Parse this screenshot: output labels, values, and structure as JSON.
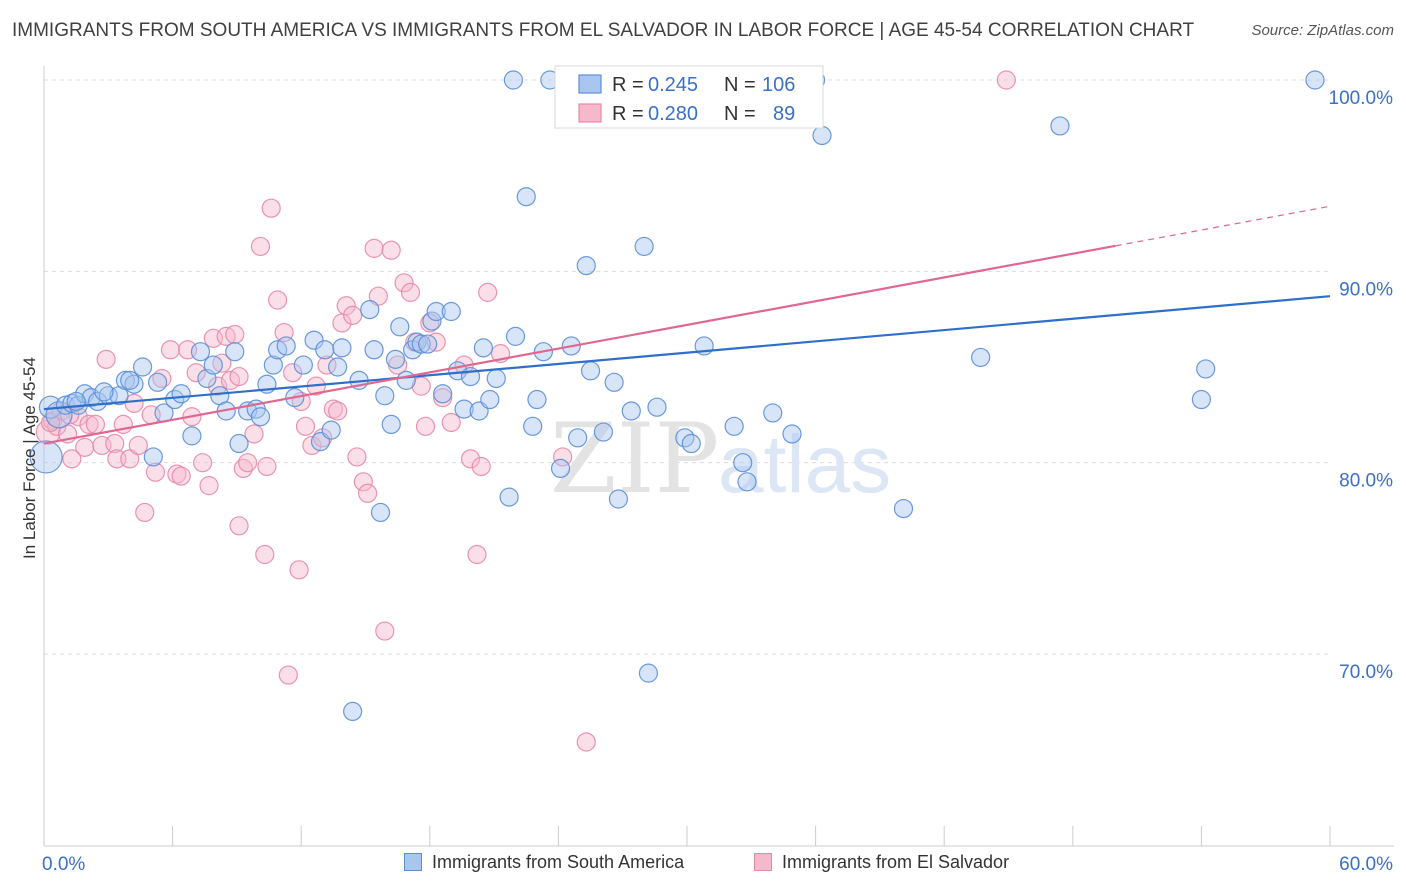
{
  "title": "IMMIGRANTS FROM SOUTH AMERICA VS IMMIGRANTS FROM EL SALVADOR IN LABOR FORCE | AGE 45-54 CORRELATION CHART",
  "source": "Source: ZipAtlas.com",
  "watermark": {
    "part1": "ZIP",
    "part2": "atlas"
  },
  "colors": {
    "blue_fill": "#a8c6f0",
    "blue_stroke": "#5b8ed8",
    "blue_line": "#2f6fcc",
    "pink_fill": "#f6b9cc",
    "pink_stroke": "#e888a8",
    "pink_line": "#e06890",
    "axis_text": "#3a70c8"
  },
  "chart_data": {
    "type": "scatter",
    "xlabel": "",
    "ylabel": "In Labor Force | Age 45-54",
    "xlim": [
      0,
      60
    ],
    "ylim": [
      60,
      101
    ],
    "x_tick_labels": [
      {
        "value": 0,
        "label": "0.0%"
      },
      {
        "value": 60,
        "label": "60.0%"
      }
    ],
    "y_tick_labels": [
      {
        "value": 70,
        "label": "70.0%"
      },
      {
        "value": 80,
        "label": "80.0%"
      },
      {
        "value": 90,
        "label": "90.0%"
      },
      {
        "value": 100,
        "label": "100.0%"
      }
    ],
    "grid": "horizontal-dashed",
    "legend_top": [
      {
        "r_label": "R =",
        "r_value": "0.245",
        "n_label": "N =",
        "n_value": "106"
      },
      {
        "r_label": "R =",
        "r_value": "0.280",
        "n_label": "N =",
        "n_value": "89"
      }
    ],
    "series": [
      {
        "name": "Immigrants from South America",
        "trend": {
          "x0": 0,
          "y0": 82.8,
          "x1": 60,
          "y1": 88.7
        },
        "points": [
          [
            0.3,
            82.9
          ],
          [
            0.7,
            82.5
          ],
          [
            1.0,
            83.0
          ],
          [
            1.3,
            83.1
          ],
          [
            1.6,
            83.0
          ],
          [
            1.9,
            83.6
          ],
          [
            2.2,
            83.4
          ],
          [
            2.5,
            83.2
          ],
          [
            3.0,
            83.5
          ],
          [
            3.5,
            83.5
          ],
          [
            3.8,
            84.3
          ],
          [
            4.2,
            84.1
          ],
          [
            4.6,
            85.0
          ],
          [
            5.1,
            80.3
          ],
          [
            5.3,
            84.2
          ],
          [
            5.6,
            82.6
          ],
          [
            6.1,
            83.3
          ],
          [
            6.4,
            83.6
          ],
          [
            6.9,
            81.4
          ],
          [
            7.3,
            85.8
          ],
          [
            7.6,
            84.4
          ],
          [
            7.9,
            85.1
          ],
          [
            8.2,
            83.5
          ],
          [
            8.5,
            82.7
          ],
          [
            8.9,
            85.8
          ],
          [
            9.1,
            81.0
          ],
          [
            9.5,
            82.7
          ],
          [
            9.9,
            82.8
          ],
          [
            10.1,
            82.4
          ],
          [
            10.4,
            84.1
          ],
          [
            10.7,
            85.1
          ],
          [
            10.9,
            85.9
          ],
          [
            11.3,
            86.1
          ],
          [
            11.7,
            83.4
          ],
          [
            12.1,
            85.1
          ],
          [
            12.6,
            86.4
          ],
          [
            12.9,
            81.1
          ],
          [
            13.1,
            85.9
          ],
          [
            13.4,
            81.7
          ],
          [
            13.7,
            85.0
          ],
          [
            13.9,
            86.0
          ],
          [
            14.4,
            67.0
          ],
          [
            14.7,
            84.3
          ],
          [
            15.2,
            88.0
          ],
          [
            15.4,
            85.9
          ],
          [
            15.7,
            77.4
          ],
          [
            15.9,
            83.5
          ],
          [
            16.2,
            82.0
          ],
          [
            16.4,
            85.4
          ],
          [
            16.6,
            87.1
          ],
          [
            16.9,
            84.3
          ],
          [
            17.2,
            85.9
          ],
          [
            17.4,
            86.3
          ],
          [
            17.6,
            86.2
          ],
          [
            17.9,
            86.2
          ],
          [
            18.1,
            87.4
          ],
          [
            18.3,
            87.9
          ],
          [
            18.6,
            83.6
          ],
          [
            19.0,
            87.9
          ],
          [
            19.3,
            84.8
          ],
          [
            19.6,
            82.8
          ],
          [
            19.9,
            84.5
          ],
          [
            20.3,
            82.7
          ],
          [
            20.5,
            86.0
          ],
          [
            20.8,
            83.3
          ],
          [
            21.1,
            84.4
          ],
          [
            21.7,
            78.2
          ],
          [
            22.0,
            86.6
          ],
          [
            22.5,
            93.9
          ],
          [
            22.8,
            81.9
          ],
          [
            23.0,
            83.3
          ],
          [
            23.3,
            85.8
          ],
          [
            24.1,
            79.7
          ],
          [
            24.6,
            86.1
          ],
          [
            24.9,
            81.3
          ],
          [
            25.3,
            90.3
          ],
          [
            25.5,
            84.8
          ],
          [
            26.1,
            81.6
          ],
          [
            26.6,
            84.2
          ],
          [
            26.8,
            78.1
          ],
          [
            27.4,
            82.7
          ],
          [
            28.0,
            91.3
          ],
          [
            28.2,
            69.0
          ],
          [
            28.6,
            82.9
          ],
          [
            29.9,
            81.3
          ],
          [
            30.2,
            81.0
          ],
          [
            30.8,
            86.1
          ],
          [
            32.2,
            81.9
          ],
          [
            32.6,
            80.0
          ],
          [
            32.8,
            79.0
          ],
          [
            34.0,
            82.6
          ],
          [
            34.9,
            81.5
          ],
          [
            36.3,
            97.1
          ],
          [
            40.1,
            77.6
          ],
          [
            43.7,
            85.5
          ],
          [
            47.4,
            97.6
          ],
          [
            54.0,
            83.3
          ],
          [
            54.2,
            84.9
          ],
          [
            21.9,
            100.0
          ],
          [
            23.6,
            100.0
          ],
          [
            36.0,
            100.0
          ],
          [
            59.3,
            100.0
          ],
          [
            0.1,
            80.3
          ],
          [
            1.5,
            83.2
          ],
          [
            2.8,
            83.7
          ],
          [
            4.0,
            84.3
          ]
        ],
        "point_sizes": {
          "default": 9,
          "large": [
            [
              0.1,
              80.3,
              16
            ],
            [
              0.7,
              82.5,
              13
            ],
            [
              0.3,
              82.9,
              11
            ]
          ]
        }
      },
      {
        "name": "Immigrants from El Salvador",
        "trend": {
          "x0": 0,
          "y0": 81.0,
          "x1": 60,
          "y1": 93.4,
          "solid_until_x": 50.0
        },
        "points": [
          [
            0.2,
            81.6
          ],
          [
            0.4,
            82.2
          ],
          [
            0.6,
            81.9
          ],
          [
            0.8,
            82.7
          ],
          [
            1.1,
            81.5
          ],
          [
            1.3,
            80.2
          ],
          [
            1.6,
            82.4
          ],
          [
            1.9,
            80.8
          ],
          [
            2.1,
            82.0
          ],
          [
            2.4,
            82.0
          ],
          [
            2.7,
            80.9
          ],
          [
            2.9,
            85.4
          ],
          [
            3.3,
            81.0
          ],
          [
            3.4,
            80.2
          ],
          [
            3.7,
            82.0
          ],
          [
            4.0,
            80.2
          ],
          [
            4.2,
            83.1
          ],
          [
            4.4,
            80.9
          ],
          [
            4.7,
            77.4
          ],
          [
            5.0,
            82.5
          ],
          [
            5.2,
            79.5
          ],
          [
            5.5,
            84.4
          ],
          [
            5.9,
            85.9
          ],
          [
            6.2,
            79.4
          ],
          [
            6.4,
            79.3
          ],
          [
            6.7,
            85.9
          ],
          [
            6.9,
            82.4
          ],
          [
            7.1,
            84.7
          ],
          [
            7.4,
            80.0
          ],
          [
            7.7,
            78.8
          ],
          [
            7.9,
            86.5
          ],
          [
            8.1,
            84.0
          ],
          [
            8.3,
            85.2
          ],
          [
            8.5,
            86.6
          ],
          [
            8.7,
            84.3
          ],
          [
            8.9,
            86.7
          ],
          [
            9.1,
            76.7
          ],
          [
            9.3,
            79.7
          ],
          [
            9.5,
            80.0
          ],
          [
            9.8,
            81.5
          ],
          [
            10.1,
            91.3
          ],
          [
            10.3,
            75.2
          ],
          [
            10.6,
            93.3
          ],
          [
            10.9,
            88.5
          ],
          [
            11.2,
            86.8
          ],
          [
            11.4,
            68.9
          ],
          [
            11.6,
            84.7
          ],
          [
            11.9,
            74.4
          ],
          [
            12.2,
            81.9
          ],
          [
            12.5,
            80.9
          ],
          [
            12.7,
            84.0
          ],
          [
            13.0,
            81.3
          ],
          [
            13.2,
            85.1
          ],
          [
            13.5,
            82.8
          ],
          [
            13.7,
            82.7
          ],
          [
            13.9,
            87.3
          ],
          [
            14.1,
            88.2
          ],
          [
            14.4,
            87.7
          ],
          [
            14.6,
            80.3
          ],
          [
            14.9,
            79.0
          ],
          [
            15.1,
            78.4
          ],
          [
            15.4,
            91.2
          ],
          [
            15.6,
            88.7
          ],
          [
            15.9,
            71.2
          ],
          [
            16.2,
            91.1
          ],
          [
            16.5,
            85.1
          ],
          [
            16.8,
            89.4
          ],
          [
            17.1,
            88.9
          ],
          [
            17.3,
            86.3
          ],
          [
            17.6,
            84.0
          ],
          [
            17.8,
            81.9
          ],
          [
            18.0,
            87.3
          ],
          [
            18.3,
            86.3
          ],
          [
            18.6,
            83.4
          ],
          [
            19.0,
            82.1
          ],
          [
            19.6,
            85.1
          ],
          [
            19.9,
            80.2
          ],
          [
            20.2,
            75.2
          ],
          [
            20.4,
            79.8
          ],
          [
            20.7,
            88.9
          ],
          [
            21.3,
            85.7
          ],
          [
            24.2,
            80.3
          ],
          [
            25.3,
            65.4
          ],
          [
            9.1,
            84.5
          ],
          [
            10.4,
            79.8
          ],
          [
            12.0,
            83.2
          ],
          [
            44.9,
            100.0
          ],
          [
            0.3,
            82.1
          ],
          [
            1.2,
            82.5
          ]
        ],
        "point_sizes": {
          "default": 9,
          "large": [
            [
              0.2,
              81.6,
              12
            ]
          ]
        }
      }
    ]
  }
}
